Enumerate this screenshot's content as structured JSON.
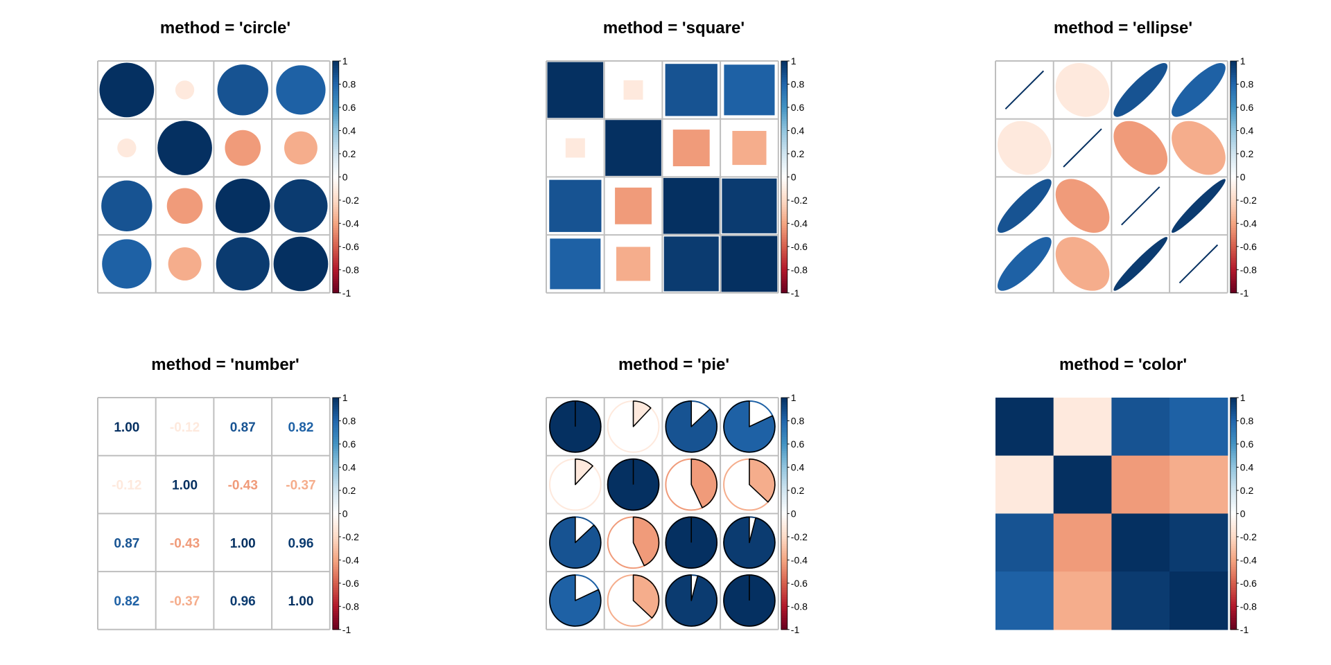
{
  "chart_data": {
    "type": "heatmap",
    "matrix": [
      [
        1.0,
        -0.12,
        0.87,
        0.82
      ],
      [
        -0.12,
        1.0,
        -0.43,
        -0.37
      ],
      [
        0.87,
        -0.43,
        1.0,
        0.96
      ],
      [
        0.82,
        -0.37,
        0.96,
        1.0
      ]
    ],
    "panels": [
      {
        "title": "method = 'circle'",
        "method": "circle"
      },
      {
        "title": "method = 'square'",
        "method": "square"
      },
      {
        "title": "method = 'ellipse'",
        "method": "ellipse"
      },
      {
        "title": "method = 'number'",
        "method": "number"
      },
      {
        "title": "method = 'pie'",
        "method": "pie"
      },
      {
        "title": "method = 'color'",
        "method": "color"
      }
    ],
    "colorbar": {
      "range": [
        -1,
        1
      ],
      "tick_labels": [
        "1",
        "0.8",
        "0.6",
        "0.4",
        "0.2",
        "0",
        "-0.2",
        "-0.4",
        "-0.6",
        "-0.8",
        "-1"
      ],
      "tick_values": [
        1,
        0.8,
        0.6,
        0.4,
        0.2,
        0,
        -0.2,
        -0.4,
        -0.6,
        -0.8,
        -1
      ]
    },
    "number_labels": [
      [
        "1.00",
        "-0.12",
        "0.87",
        "0.82"
      ],
      [
        "-0.12",
        "1.00",
        "-0.43",
        "-0.37"
      ],
      [
        "0.87",
        "-0.43",
        "1.00",
        "0.96"
      ],
      [
        "0.82",
        "-0.37",
        "0.96",
        "1.00"
      ]
    ],
    "palette": [
      "#67001F",
      "#B2182B",
      "#D6604D",
      "#F4A582",
      "#FDDBC7",
      "#FFFFFF",
      "#D1E5F0",
      "#92C5DE",
      "#4393C3",
      "#2166AC",
      "#053061"
    ],
    "grid_color": "#BEBEBE"
  }
}
